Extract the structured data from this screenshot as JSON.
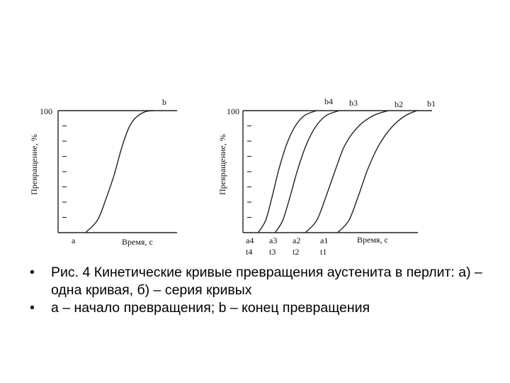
{
  "chart_data": [
    {
      "type": "line",
      "panel": "a",
      "ylabel": "Превращение, %",
      "xlabel": "Время, с",
      "y_tick_label": "100",
      "ylim": [
        0,
        100
      ],
      "xlim": [
        0,
        10
      ],
      "series": [
        {
          "start_label": "a",
          "end_label": "b",
          "x": [
            2.3,
            3.3,
            4.0,
            4.7,
            5.3,
            5.9,
            6.5,
            7.3,
            8.0
          ],
          "y": [
            0,
            10,
            27,
            47,
            68,
            85,
            94,
            99,
            100
          ]
        }
      ]
    },
    {
      "type": "line",
      "panel": "b",
      "ylabel": "Превращение, %",
      "xlabel": "Время, с",
      "y_tick_label": "100",
      "ylim": [
        0,
        100
      ],
      "xlim": [
        0,
        10
      ],
      "series": [
        {
          "start_label": "a4",
          "end_label": "b4",
          "start_time_label": "t4",
          "x": [
            0.8,
            1.2,
            1.55,
            1.9,
            2.3,
            2.75,
            3.25,
            3.9
          ],
          "y": [
            0,
            10,
            30,
            52,
            72,
            87,
            96,
            100
          ]
        },
        {
          "start_label": "a3",
          "end_label": "b3",
          "start_time_label": "t3",
          "x": [
            1.7,
            2.1,
            2.5,
            2.9,
            3.35,
            3.85,
            4.4,
            5.1
          ],
          "y": [
            0,
            10,
            30,
            52,
            72,
            87,
            96,
            100
          ]
        },
        {
          "start_label": "a2",
          "end_label": "b2",
          "start_time_label": "t2",
          "x": [
            3.3,
            3.9,
            4.4,
            4.9,
            5.4,
            6.1,
            6.9,
            7.7
          ],
          "y": [
            0,
            10,
            30,
            52,
            72,
            87,
            96,
            100
          ]
        },
        {
          "start_label": "a1",
          "end_label": "b1",
          "start_time_label": "t1",
          "x": [
            5.0,
            5.6,
            6.1,
            6.6,
            7.2,
            7.9,
            8.6,
            9.2
          ],
          "y": [
            0,
            10,
            30,
            52,
            72,
            87,
            96,
            100
          ]
        }
      ]
    }
  ],
  "caption": {
    "bullet_symbol": "•",
    "lines": [
      "Рис. 4 Кинетические кривые превращения аустенита в перлит: а) – одна кривая, б) – серия кривых",
      "a – начало превращения; b – конец превращения"
    ]
  }
}
